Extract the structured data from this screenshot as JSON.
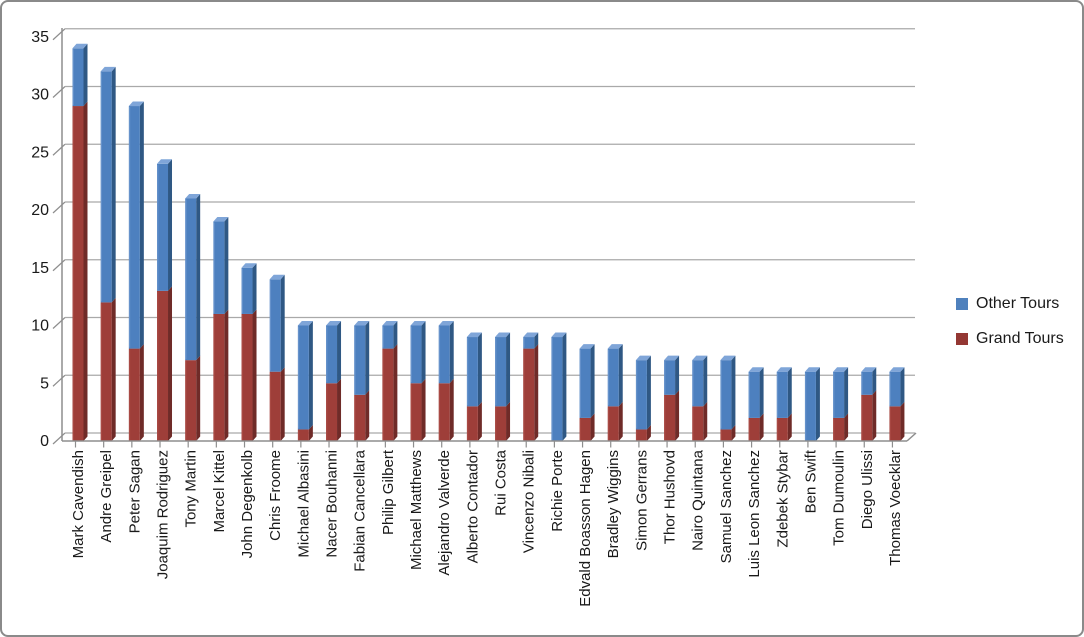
{
  "chart_data": {
    "type": "bar",
    "stacked": true,
    "style": "excel-3d-stacked-column",
    "title": "",
    "xlabel": "",
    "ylabel": "",
    "ylim": [
      0,
      35
    ],
    "ytick_step": 5,
    "yticks": [
      0,
      5,
      10,
      15,
      20,
      25,
      30,
      35
    ],
    "grid": true,
    "legend_position": "right-middle",
    "categories": [
      "Mark Cavendish",
      "Andre Greipel",
      "Peter Sagan",
      "Joaquim Rodriguez",
      "Tony Martin",
      "Marcel Kittel",
      "John Degenkolb",
      "Chris Froome",
      "Michael Albasini",
      "Nacer Bouhanni",
      "Fabian Cancellara",
      "Philip Gilbert",
      "Michael Matthews",
      "Alejandro Valverde",
      "Alberto Contador",
      "Rui Costa",
      "Vincenzo Nibali",
      "Richie Porte",
      "Edvald Boasson Hagen",
      "Bradley Wiggins",
      "Simon Gerrans",
      "Thor Hushovd",
      "Nairo Quintana",
      "Samuel Sanchez",
      "Luis Leon Sanchez",
      "Zdebek Stybar",
      "Ben Swift",
      "Tom Dumoulin",
      "Diego Ulissi",
      "Thomas Voecklar"
    ],
    "series": [
      {
        "name": "Grand Tours",
        "color": "#9E3E39",
        "color_side": "#6F2B28",
        "color_light": "#B5564F",
        "values": [
          29,
          12,
          8,
          13,
          7,
          11,
          11,
          6,
          1,
          5,
          4,
          8,
          5,
          5,
          3,
          3,
          8,
          0,
          2,
          3,
          1,
          4,
          3,
          1,
          2,
          2,
          0,
          2,
          4,
          3
        ]
      },
      {
        "name": "Other Tours",
        "color": "#4D80BF",
        "color_side": "#2F5884",
        "color_light": "#7FA5D8",
        "values": [
          5,
          20,
          21,
          11,
          14,
          8,
          4,
          8,
          9,
          5,
          6,
          2,
          5,
          5,
          6,
          6,
          1,
          9,
          6,
          5,
          6,
          3,
          4,
          6,
          4,
          4,
          6,
          4,
          2,
          3
        ]
      }
    ],
    "totals": [
      34,
      32,
      29,
      24,
      21,
      19,
      15,
      14,
      10,
      10,
      10,
      10,
      10,
      10,
      9,
      9,
      9,
      9,
      8,
      8,
      7,
      7,
      7,
      7,
      6,
      6,
      6,
      6,
      6,
      6
    ],
    "legend": [
      {
        "label": "Other Tours",
        "color": "#4F81BD"
      },
      {
        "label": "Grand Tours",
        "color": "#943733"
      }
    ]
  },
  "colors": {
    "background": "#ffffff",
    "frame_border": "#8a8a8a",
    "gridline": "#a9a9a9",
    "axis": "#8e8e8e",
    "text": "#1a1a1a"
  }
}
